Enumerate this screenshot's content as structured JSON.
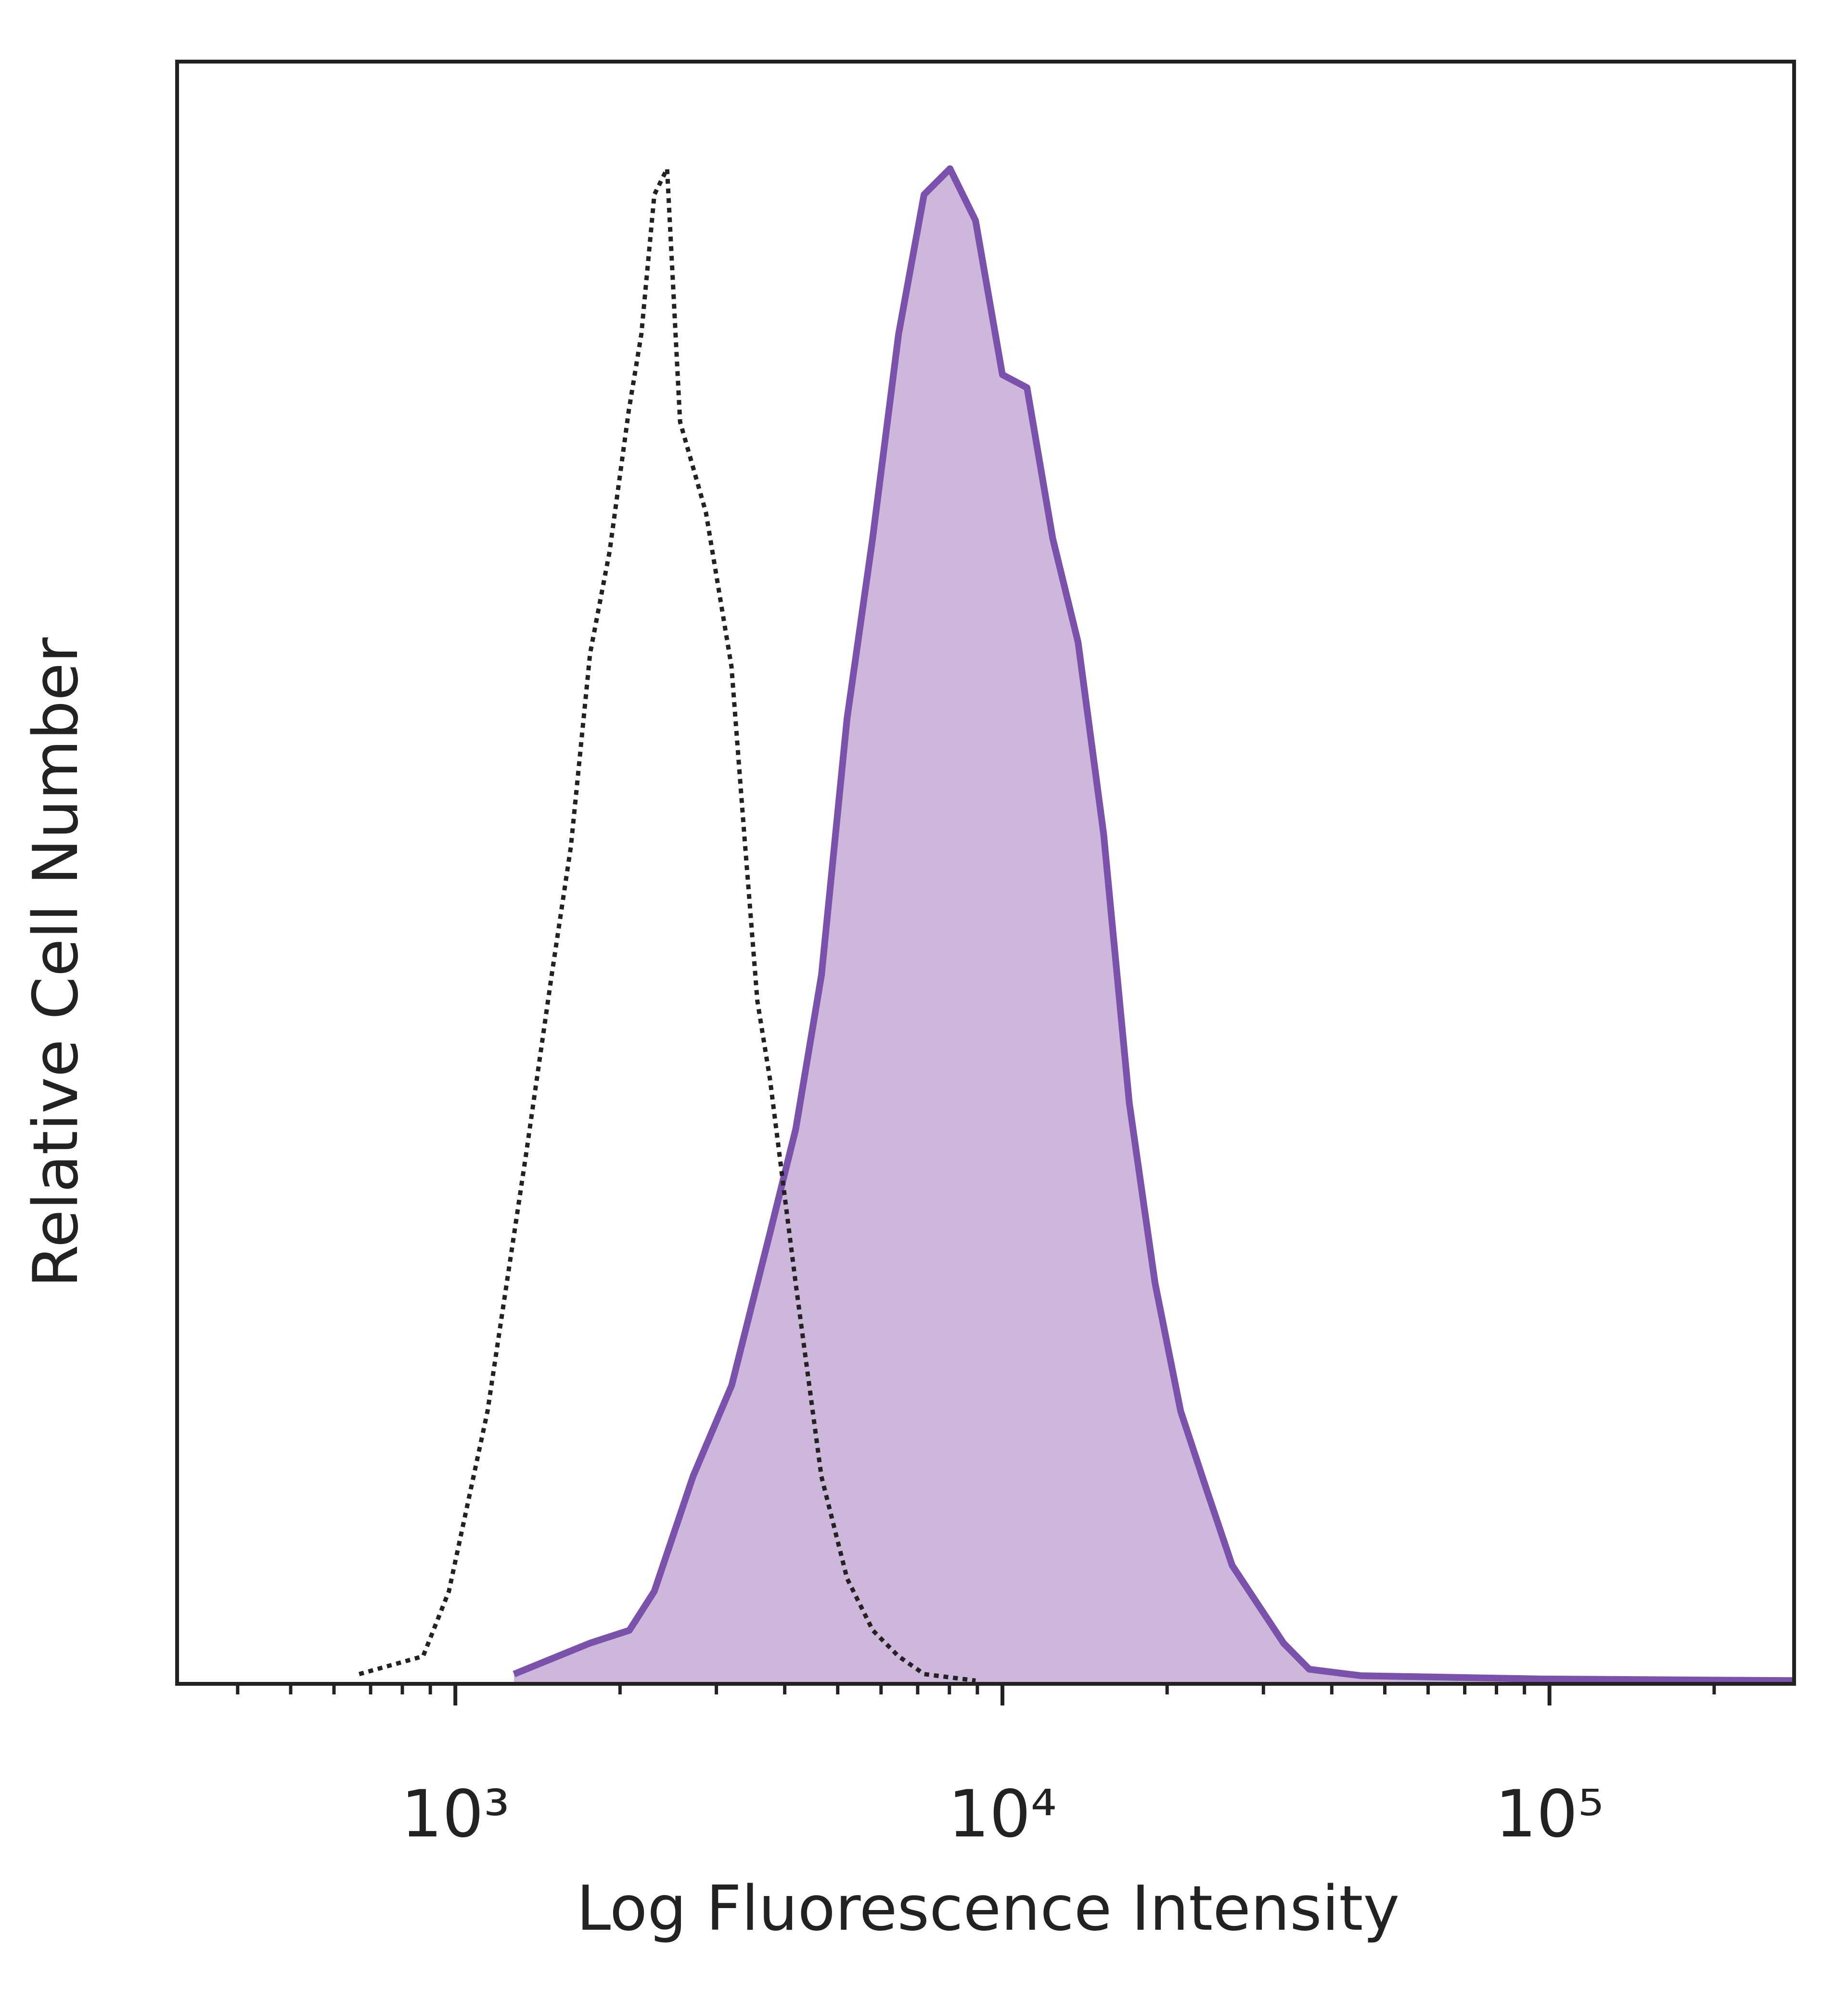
{
  "chart_data": {
    "type": "histogram-overlay",
    "xlabel": "Log Fluorescence Intensity",
    "ylabel": "Relative Cell Number",
    "xscale": "log",
    "xlim": [
      310,
      280000
    ],
    "ylim": [
      0,
      100
    ],
    "xticks": [
      {
        "value": 1000,
        "label": "10³"
      },
      {
        "value": 10000,
        "label": "10⁴"
      },
      {
        "value": 100000,
        "label": "10⁵"
      }
    ],
    "x_minor_ticks": [
      400,
      500,
      600,
      700,
      800,
      900,
      2000,
      3000,
      4000,
      5000,
      6000,
      7000,
      8000,
      9000,
      20000,
      30000,
      40000,
      50000,
      60000,
      70000,
      80000,
      90000,
      200000
    ],
    "series": [
      {
        "color": "#7b52ab",
        "fill": "#cdb8dc",
        "style": "solid",
        "x": [
          1280,
          1760,
          2080,
          2310,
          2720,
          3200,
          3760,
          4190,
          4670,
          5200,
          5790,
          6460,
          7190,
          8020,
          8930,
          10000,
          11090,
          12360,
          13750,
          15310,
          17060,
          19010,
          21180,
          23600,
          26300,
          29310,
          32660,
          36390,
          45190,
          96380,
          280000
        ],
        "values": [
          0.6,
          2.5,
          3.3,
          5.7,
          12.8,
          18.4,
          27.8,
          34.2,
          43.7,
          59.5,
          70.6,
          83.2,
          91.8,
          93.4,
          90.2,
          80.7,
          79.9,
          70.6,
          64.2,
          52.4,
          35.8,
          24.7,
          16.8,
          12.0,
          7.3,
          4.9,
          2.5,
          0.9,
          0.5,
          0.3,
          0.2
        ]
      },
      {
        "color": "#222222",
        "style": "dotted",
        "x": [
          667,
          873,
          973,
          1145,
          1346,
          1500,
          1626,
          1763,
          1914,
          2075,
          2188,
          2311,
          2438,
          2575,
          2871,
          3197,
          3373,
          3565,
          3758,
          4188,
          4667,
          5200,
          5794,
          6457,
          7194,
          8932
        ],
        "values": [
          0.6,
          1.7,
          5.7,
          16.8,
          32.6,
          43.7,
          51.6,
          63.5,
          69.8,
          78.5,
          83.2,
          91.8,
          93.4,
          77.8,
          72.2,
          62.7,
          52.4,
          42.1,
          37.3,
          24.7,
          12.8,
          6.5,
          3.3,
          1.7,
          0.6,
          0.2
        ]
      }
    ]
  }
}
